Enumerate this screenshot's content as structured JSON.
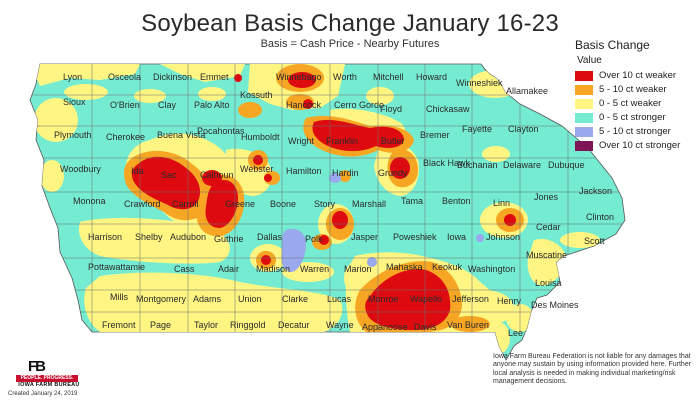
{
  "title": "Soybean Basis Change January 16-23",
  "subtitle": "Basis = Cash Price - Nearby Futures",
  "legend": {
    "title": "Basis Change",
    "subtitle": "Value",
    "items": [
      {
        "label": "Over 10 ct weaker",
        "color": "#dd0b10"
      },
      {
        "label": "5 - 10 ct weaker",
        "color": "#f7a623"
      },
      {
        "label": "0 - 5 ct weaker",
        "color": "#fef582"
      },
      {
        "label": "0 - 5 ct stronger",
        "color": "#75ecd2"
      },
      {
        "label": "5 - 10 ct stronger",
        "color": "#9aa8ee"
      },
      {
        "label": "Over 10 ct stronger",
        "color": "#7e1656"
      }
    ]
  },
  "counties": [
    "Lyon",
    "Osceola",
    "Dickinson",
    "Emmet",
    "Winnebago",
    "Worth",
    "Mitchell",
    "Howard",
    "Winneshiek",
    "Allamakee",
    "Sioux",
    "O'Brien",
    "Clay",
    "Palo Alto",
    "Kossuth",
    "Hancock",
    "Cerro Gordo",
    "Floyd",
    "Chickasaw",
    "Plymouth",
    "Cherokee",
    "Buena Vista",
    "Pocahontas",
    "Humboldt",
    "Wright",
    "Franklin",
    "Butler",
    "Bremer",
    "Fayette",
    "Clayton",
    "Woodbury",
    "Ida",
    "Sac",
    "Calhoun",
    "Webster",
    "Hamilton",
    "Hardin",
    "Grundy",
    "Black Hawk",
    "Buchanan",
    "Delaware",
    "Dubuque",
    "Monona",
    "Crawford",
    "Carroll",
    "Greene",
    "Boone",
    "Story",
    "Marshall",
    "Tama",
    "Benton",
    "Linn",
    "Jones",
    "Jackson",
    "Harrison",
    "Shelby",
    "Audubon",
    "Guthrie",
    "Dallas",
    "Polk",
    "Jasper",
    "Poweshiek",
    "Iowa",
    "Johnson",
    "Cedar",
    "Clinton",
    "Scott",
    "Pottawattamie",
    "Cass",
    "Adair",
    "Madison",
    "Warren",
    "Marion",
    "Mahaska",
    "Keokuk",
    "Washington",
    "Muscatine",
    "Mills",
    "Montgomery",
    "Adams",
    "Union",
    "Clarke",
    "Lucas",
    "Monroe",
    "Wapello",
    "Jefferson",
    "Henry",
    "Louisa",
    "Des Moines",
    "Fremont",
    "Page",
    "Taylor",
    "Ringgold",
    "Decatur",
    "Wayne",
    "Appanoose",
    "Davis",
    "Van Buren",
    "Lee"
  ],
  "disclaimer": "Iowa Farm Bureau Federation is not liable for any damages that anyone may sustain by using information provided here. Further local analysis is needed in making individual marketing/risk management decisions.",
  "logo": {
    "mark": "FB",
    "tagline": "PEOPLE. PROGRESS. PRIDE.",
    "name": "IOWA FARM BUREAU"
  },
  "created": "Created January 24, 2019"
}
